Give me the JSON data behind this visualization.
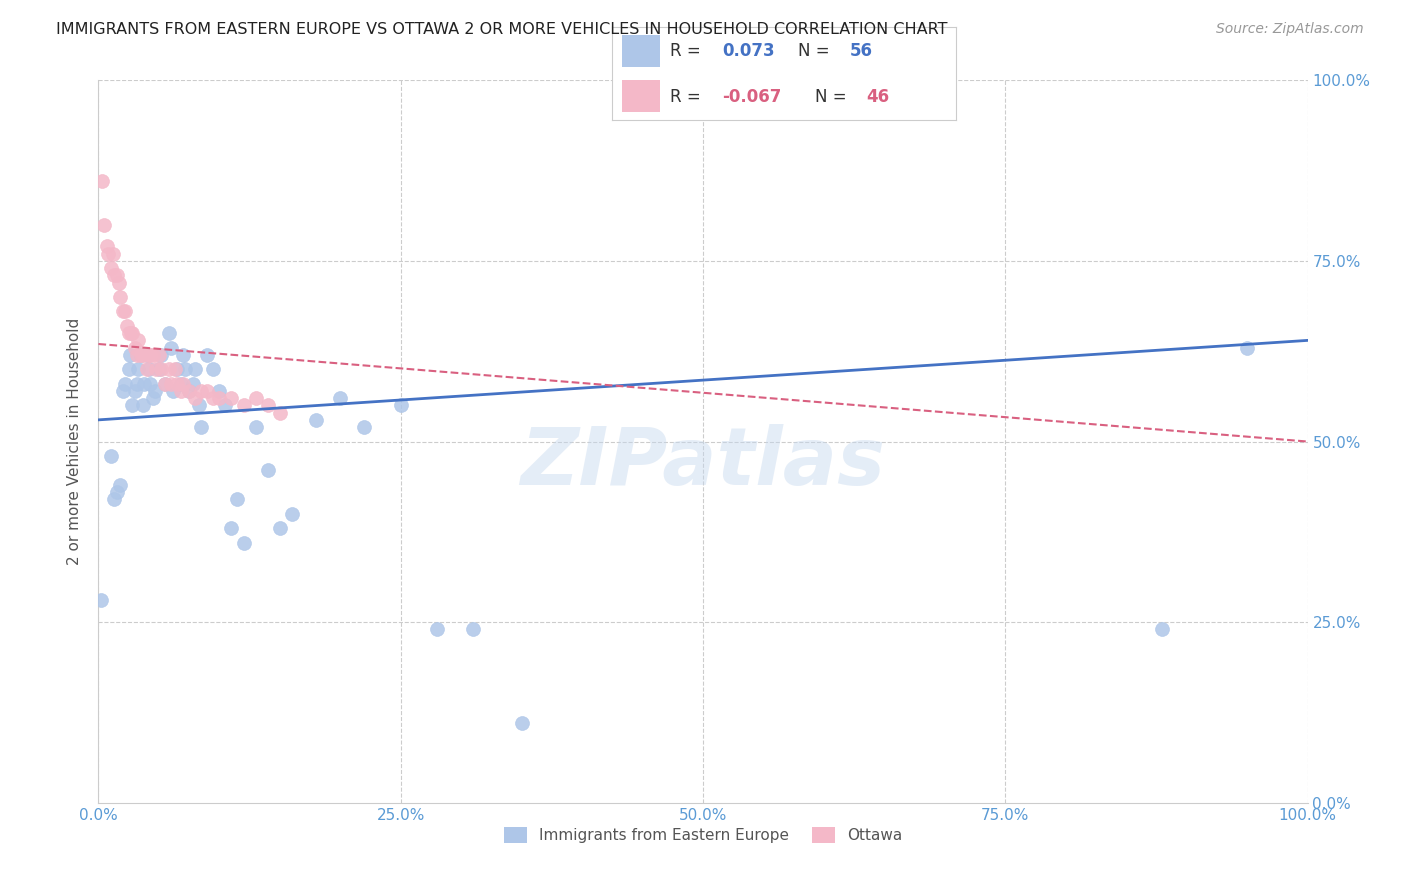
{
  "title": "IMMIGRANTS FROM EASTERN EUROPE VS OTTAWA 2 OR MORE VEHICLES IN HOUSEHOLD CORRELATION CHART",
  "source": "Source: ZipAtlas.com",
  "ylabel": "2 or more Vehicles in Household",
  "legend_r1": "R =  0.073",
  "legend_n1": "N = 56",
  "legend_r2": "R = -0.067",
  "legend_n2": "N = 46",
  "legend_label1": "Immigrants from Eastern Europe",
  "legend_label2": "Ottawa",
  "blue_color": "#aec6e8",
  "pink_color": "#f4b8c8",
  "blue_line_color": "#4472c4",
  "pink_line_color": "#d96080",
  "title_color": "#222222",
  "source_color": "#999999",
  "axis_label_color": "#5b9bd5",
  "watermark": "ZIPatlas",
  "blue_scatter_x": [
    0.002,
    0.01,
    0.013,
    0.015,
    0.018,
    0.02,
    0.022,
    0.025,
    0.026,
    0.028,
    0.03,
    0.032,
    0.033,
    0.035,
    0.037,
    0.038,
    0.04,
    0.042,
    0.043,
    0.045,
    0.047,
    0.05,
    0.052,
    0.055,
    0.058,
    0.06,
    0.062,
    0.065,
    0.068,
    0.07,
    0.072,
    0.075,
    0.078,
    0.08,
    0.083,
    0.085,
    0.09,
    0.095,
    0.1,
    0.105,
    0.11,
    0.115,
    0.12,
    0.13,
    0.14,
    0.15,
    0.16,
    0.18,
    0.2,
    0.22,
    0.25,
    0.28,
    0.31,
    0.35,
    0.88,
    0.95
  ],
  "blue_scatter_y": [
    0.28,
    0.48,
    0.42,
    0.43,
    0.44,
    0.57,
    0.58,
    0.6,
    0.62,
    0.55,
    0.57,
    0.58,
    0.6,
    0.62,
    0.55,
    0.58,
    0.62,
    0.6,
    0.58,
    0.56,
    0.57,
    0.6,
    0.62,
    0.58,
    0.65,
    0.63,
    0.57,
    0.6,
    0.58,
    0.62,
    0.6,
    0.57,
    0.58,
    0.6,
    0.55,
    0.52,
    0.62,
    0.6,
    0.57,
    0.55,
    0.38,
    0.42,
    0.36,
    0.52,
    0.46,
    0.38,
    0.4,
    0.53,
    0.56,
    0.52,
    0.55,
    0.24,
    0.24,
    0.11,
    0.24,
    0.63
  ],
  "pink_scatter_x": [
    0.003,
    0.005,
    0.007,
    0.008,
    0.01,
    0.012,
    0.013,
    0.015,
    0.017,
    0.018,
    0.02,
    0.022,
    0.024,
    0.025,
    0.027,
    0.028,
    0.03,
    0.032,
    0.033,
    0.035,
    0.037,
    0.04,
    0.042,
    0.043,
    0.045,
    0.048,
    0.05,
    0.052,
    0.055,
    0.058,
    0.06,
    0.063,
    0.065,
    0.068,
    0.07,
    0.075,
    0.08,
    0.085,
    0.09,
    0.095,
    0.1,
    0.11,
    0.12,
    0.13,
    0.14,
    0.15
  ],
  "pink_scatter_y": [
    0.86,
    0.8,
    0.77,
    0.76,
    0.74,
    0.76,
    0.73,
    0.73,
    0.72,
    0.7,
    0.68,
    0.68,
    0.66,
    0.65,
    0.65,
    0.65,
    0.63,
    0.62,
    0.64,
    0.62,
    0.62,
    0.6,
    0.62,
    0.62,
    0.62,
    0.6,
    0.62,
    0.6,
    0.58,
    0.6,
    0.58,
    0.6,
    0.58,
    0.57,
    0.58,
    0.57,
    0.56,
    0.57,
    0.57,
    0.56,
    0.56,
    0.56,
    0.55,
    0.56,
    0.55,
    0.54
  ]
}
